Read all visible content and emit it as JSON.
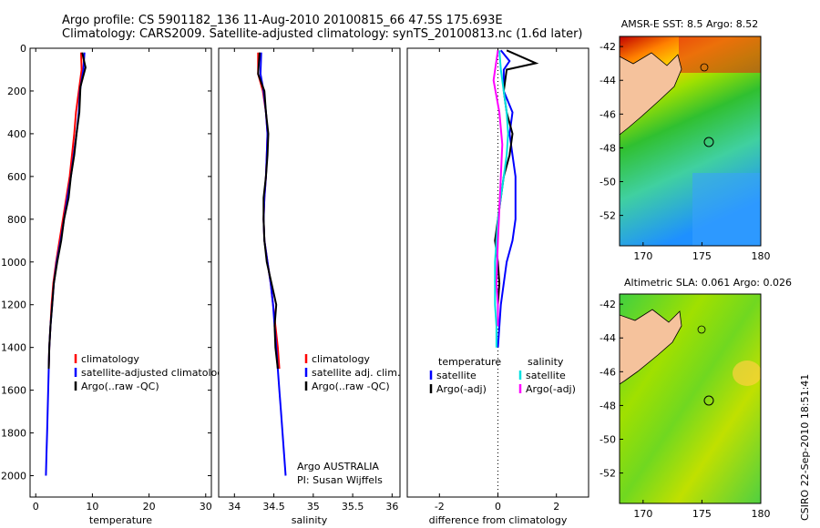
{
  "header": {
    "line1": "Argo profile: CS 5901182_136 11-Aug-2010 20100815_66 47.5S 175.693E",
    "line2": "Climatology: CARS2009. Satellite-adjusted climatology: synTS_20100813.nc (1.6d later)"
  },
  "colors": {
    "climatology": "#ff0000",
    "satellite": "#0000ff",
    "argo": "#000000",
    "salinity_satellite": "#00e0e0",
    "salinity_argo": "#ff00ff"
  },
  "chart_data": [
    {
      "type": "line",
      "xlabel": "temperature",
      "ylabel": "",
      "xlim": [
        -1,
        31
      ],
      "ylim": [
        2100,
        0
      ],
      "xticks": [
        0,
        10,
        20,
        30
      ],
      "yticks": [
        0,
        200,
        400,
        600,
        800,
        1000,
        1200,
        1400,
        1600,
        1800,
        2000
      ],
      "legend": [
        "climatology",
        "satellite-adjusted climatolog",
        "Argo(..raw -QC)"
      ],
      "series": [
        {
          "name": "climatology",
          "color": "climatology",
          "points": [
            [
              8.0,
              20
            ],
            [
              8.1,
              100
            ],
            [
              7.6,
              200
            ],
            [
              7.1,
              300
            ],
            [
              6.8,
              400
            ],
            [
              6.4,
              500
            ],
            [
              6.0,
              600
            ],
            [
              5.4,
              700
            ],
            [
              4.8,
              800
            ],
            [
              4.2,
              900
            ],
            [
              3.6,
              1000
            ],
            [
              3.1,
              1100
            ],
            [
              2.8,
              1200
            ],
            [
              2.6,
              1300
            ],
            [
              2.4,
              1400
            ],
            [
              2.3,
              1500
            ]
          ]
        },
        {
          "name": "satellite-adjusted climatolog",
          "color": "satellite",
          "points": [
            [
              8.6,
              20
            ],
            [
              8.4,
              100
            ],
            [
              7.8,
              200
            ],
            [
              7.6,
              300
            ],
            [
              7.2,
              400
            ],
            [
              6.7,
              500
            ],
            [
              6.2,
              600
            ],
            [
              5.6,
              700
            ],
            [
              5.0,
              800
            ],
            [
              4.4,
              900
            ],
            [
              3.7,
              1000
            ],
            [
              3.2,
              1100
            ],
            [
              2.9,
              1200
            ],
            [
              2.6,
              1300
            ],
            [
              2.4,
              1400
            ],
            [
              2.3,
              1500
            ],
            [
              2.2,
              1600
            ],
            [
              2.1,
              1700
            ],
            [
              2.0,
              1800
            ],
            [
              1.9,
              1900
            ],
            [
              1.8,
              2000
            ]
          ]
        },
        {
          "name": "Argo(..raw -QC)",
          "color": "argo",
          "points": [
            [
              8.2,
              20
            ],
            [
              8.8,
              90
            ],
            [
              7.9,
              180
            ],
            [
              7.7,
              300
            ],
            [
              7.2,
              400
            ],
            [
              6.8,
              500
            ],
            [
              6.2,
              600
            ],
            [
              5.8,
              700
            ],
            [
              5.0,
              800
            ],
            [
              4.5,
              900
            ],
            [
              3.8,
              1000
            ],
            [
              3.2,
              1100
            ],
            [
              2.9,
              1200
            ],
            [
              2.6,
              1300
            ],
            [
              2.4,
              1400
            ],
            [
              2.3,
              1500
            ]
          ]
        }
      ]
    },
    {
      "type": "line",
      "xlabel": "salinity",
      "ylabel": "",
      "xlim": [
        33.8,
        36.1
      ],
      "ylim": [
        2100,
        0
      ],
      "xticks": [
        34,
        34.5,
        35,
        35.5,
        36
      ],
      "yticks": [],
      "legend": [
        "climatology",
        "satellite adj. clim.",
        "Argo(..raw -QC)"
      ],
      "annotations": [
        "Argo AUSTRALIA",
        "PI: Susan Wijffels"
      ],
      "series": [
        {
          "name": "climatology",
          "color": "climatology",
          "points": [
            [
              34.3,
              20
            ],
            [
              34.3,
              120
            ],
            [
              34.36,
              200
            ],
            [
              34.4,
              300
            ],
            [
              34.42,
              400
            ],
            [
              34.41,
              500
            ],
            [
              34.4,
              600
            ],
            [
              34.38,
              700
            ],
            [
              34.37,
              800
            ],
            [
              34.38,
              900
            ],
            [
              34.42,
              1000
            ],
            [
              34.46,
              1100
            ],
            [
              34.49,
              1200
            ],
            [
              34.52,
              1300
            ],
            [
              34.55,
              1400
            ],
            [
              34.57,
              1500
            ]
          ]
        },
        {
          "name": "satellite adj. clim.",
          "color": "satellite",
          "points": [
            [
              34.34,
              20
            ],
            [
              34.33,
              120
            ],
            [
              34.37,
              200
            ],
            [
              34.4,
              300
            ],
            [
              34.42,
              400
            ],
            [
              34.41,
              500
            ],
            [
              34.4,
              600
            ],
            [
              34.38,
              700
            ],
            [
              34.37,
              800
            ],
            [
              34.38,
              900
            ],
            [
              34.42,
              1000
            ],
            [
              34.46,
              1100
            ],
            [
              34.49,
              1200
            ],
            [
              34.51,
              1300
            ],
            [
              34.53,
              1400
            ],
            [
              34.55,
              1500
            ],
            [
              34.57,
              1600
            ],
            [
              34.59,
              1700
            ],
            [
              34.61,
              1800
            ],
            [
              34.63,
              1900
            ],
            [
              34.65,
              2000
            ]
          ]
        },
        {
          "name": "Argo(..raw -QC)",
          "color": "argo",
          "points": [
            [
              34.32,
              20
            ],
            [
              34.3,
              120
            ],
            [
              34.38,
              200
            ],
            [
              34.4,
              300
            ],
            [
              34.43,
              400
            ],
            [
              34.42,
              500
            ],
            [
              34.4,
              600
            ],
            [
              34.37,
              700
            ],
            [
              34.37,
              800
            ],
            [
              34.38,
              900
            ],
            [
              34.41,
              1000
            ],
            [
              34.47,
              1100
            ],
            [
              34.53,
              1200
            ],
            [
              34.51,
              1300
            ],
            [
              34.52,
              1400
            ],
            [
              34.55,
              1500
            ]
          ]
        }
      ]
    },
    {
      "type": "line",
      "xlabel": "difference from climatology",
      "ylabel": "",
      "xlim": [
        -3.1,
        3.1
      ],
      "ylim": [
        2100,
        0
      ],
      "xticks": [
        -2,
        0,
        2
      ],
      "yticks": [],
      "legend_groups": [
        {
          "title": "temperature",
          "items": [
            "satellite",
            "Argo(-adj)"
          ]
        },
        {
          "title": "salinity",
          "items": [
            "satellite",
            "Argo(-adj)"
          ]
        }
      ],
      "series": [
        {
          "name": "temperature satellite",
          "color": "satellite",
          "points": [
            [
              0.1,
              10
            ],
            [
              0.4,
              60
            ],
            [
              0.2,
              100
            ],
            [
              0.2,
              200
            ],
            [
              0.5,
              300
            ],
            [
              0.4,
              400
            ],
            [
              0.5,
              500
            ],
            [
              0.6,
              600
            ],
            [
              0.6,
              700
            ],
            [
              0.6,
              800
            ],
            [
              0.5,
              900
            ],
            [
              0.3,
              1000
            ],
            [
              0.2,
              1100
            ],
            [
              0.1,
              1200
            ],
            [
              0.05,
              1300
            ],
            [
              0.0,
              1400
            ]
          ]
        },
        {
          "name": "temperature Argo(-adj)",
          "color": "argo",
          "points": [
            [
              0.3,
              10
            ],
            [
              1.3,
              70
            ],
            [
              0.3,
              100
            ],
            [
              0.2,
              200
            ],
            [
              0.3,
              300
            ],
            [
              0.5,
              400
            ],
            [
              0.4,
              500
            ],
            [
              0.2,
              600
            ],
            [
              0.1,
              700
            ],
            [
              0.0,
              800
            ],
            [
              -0.1,
              900
            ],
            [
              0.0,
              1000
            ],
            [
              0.05,
              1100
            ],
            [
              0.0,
              1200
            ],
            [
              0.0,
              1300
            ]
          ]
        },
        {
          "name": "salinity satellite",
          "color": "salinity_satellite",
          "points": [
            [
              0.05,
              10
            ],
            [
              0.1,
              100
            ],
            [
              0.2,
              200
            ],
            [
              0.3,
              300
            ],
            [
              0.35,
              400
            ],
            [
              0.3,
              500
            ],
            [
              0.2,
              600
            ],
            [
              0.1,
              700
            ],
            [
              0.0,
              800
            ],
            [
              -0.05,
              900
            ],
            [
              -0.1,
              1000
            ],
            [
              -0.1,
              1100
            ],
            [
              -0.1,
              1200
            ],
            [
              -0.05,
              1300
            ],
            [
              -0.05,
              1400
            ]
          ]
        },
        {
          "name": "salinity Argo(-adj)",
          "color": "salinity_argo",
          "points": [
            [
              0.0,
              10
            ],
            [
              -0.15,
              150
            ],
            [
              0.05,
              300
            ],
            [
              0.15,
              450
            ],
            [
              0.1,
              600
            ],
            [
              0.05,
              750
            ],
            [
              0.0,
              900
            ],
            [
              -0.05,
              1100
            ],
            [
              0.0,
              1200
            ],
            [
              0.0,
              1300
            ]
          ]
        }
      ]
    }
  ],
  "maps": [
    {
      "title": "AMSR-E SST: 8.5 Argo: 8.52",
      "xticks": [
        170,
        175,
        180
      ],
      "yticks": [
        -42,
        -44,
        -46,
        -48,
        -50,
        -52
      ]
    },
    {
      "title": "Altimetric SLA: 0.061 Argo: 0.026",
      "xticks": [
        170,
        175,
        180
      ],
      "yticks": [
        -42,
        -44,
        -46,
        -48,
        -50,
        -52
      ]
    }
  ],
  "footer_stamp": "CSIRO 22-Sep-2010 18:51:41"
}
